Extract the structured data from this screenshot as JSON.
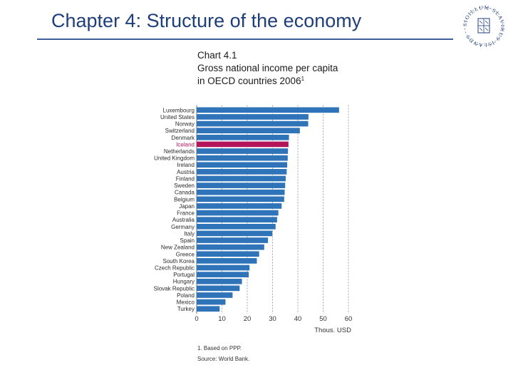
{
  "slide": {
    "title": "Chapter 4: Structure of the economy",
    "logo_text": "SIGILLUM·SLAVIKUS·ISLANDS"
  },
  "chart_header": {
    "chart_number": "Chart 4.1",
    "title_line1": "Gross national income per capita",
    "title_line2": "in OECD countries 2006",
    "title_sup": "1"
  },
  "footnotes": {
    "note1": "1. Based on PPP.",
    "source": "Source: World Bank."
  },
  "chart_data": {
    "type": "bar",
    "orientation": "horizontal",
    "title": "Gross national income per capita in OECD countries 2006",
    "xlabel": "Thous. USD",
    "ylabel": "",
    "xlim": [
      0,
      60
    ],
    "xticks": [
      0,
      10,
      20,
      30,
      40,
      50,
      60
    ],
    "grid": "vertical dashed",
    "colors": {
      "bar": "#2f73b8",
      "highlight": "#b4145a",
      "grid": "#9aa4b0"
    },
    "highlight": "Iceland",
    "categories": [
      "Luxembourg",
      "United States",
      "Norway",
      "Switzerland",
      "Denmark",
      "Iceland",
      "Netherlands",
      "United Kingdom",
      "Ireland",
      "Austria",
      "Finland",
      "Sweden",
      "Canada",
      "Belgium",
      "Japan",
      "France",
      "Australia",
      "Germany",
      "Italy",
      "Spain",
      "New Zealand",
      "Greece",
      "South Korea",
      "Czech Republic",
      "Portugal",
      "Hungary",
      "Slovak Republic",
      "Poland",
      "Mexico",
      "Turkey"
    ],
    "values": [
      56.3,
      44.2,
      44.1,
      40.8,
      36.5,
      36.3,
      36.1,
      36.0,
      35.8,
      35.6,
      35.2,
      35.0,
      34.8,
      34.6,
      33.6,
      32.3,
      31.8,
      31.2,
      29.9,
      28.2,
      26.7,
      24.7,
      23.8,
      20.9,
      20.6,
      17.9,
      17.0,
      14.2,
      11.4,
      9.1
    ]
  }
}
